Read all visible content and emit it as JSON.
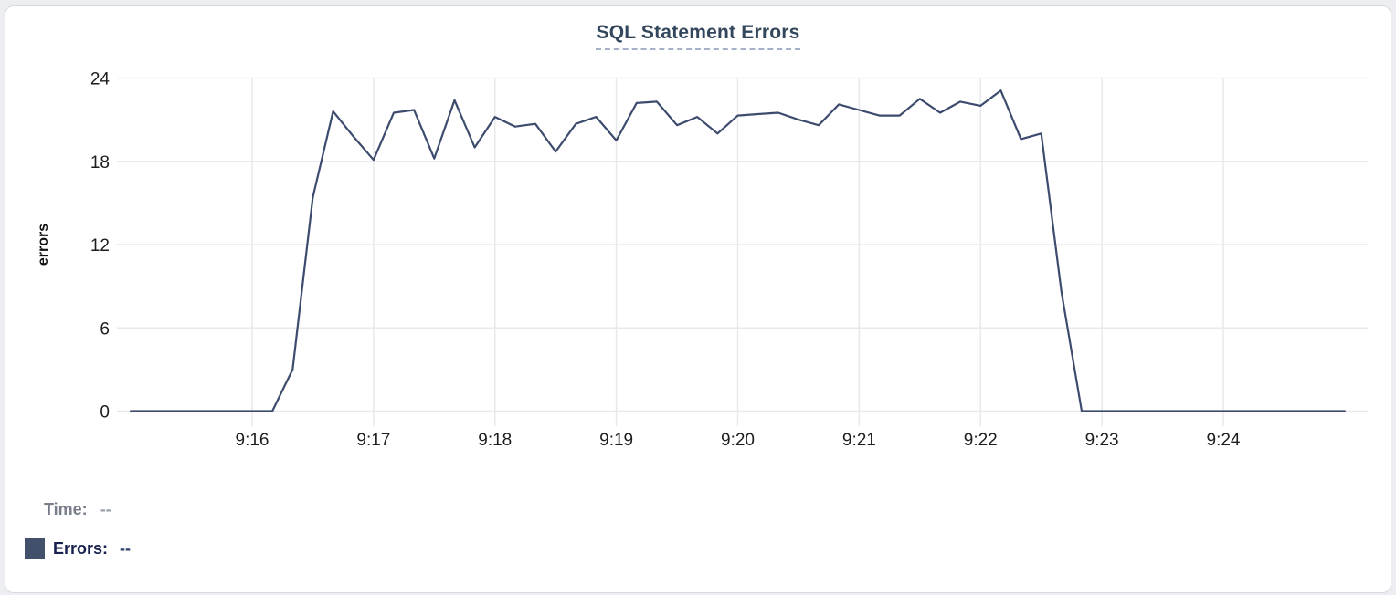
{
  "card": {
    "title": "SQL Statement Errors"
  },
  "footer": {
    "time_label": "Time:",
    "time_value": "--",
    "errors_label": "Errors:",
    "errors_value": "--"
  },
  "colors": {
    "line": "#3d4c6e",
    "legend_swatch": "#42506c",
    "title_text": "#33475c",
    "title_underline": "#a6b0c6",
    "grid": "#e8e9eb",
    "tick_text": "#1d1d1f",
    "axis_label_text": "#111111",
    "time_text": "#787e89",
    "errors_text": "#18214d",
    "card_border": "#d8dade",
    "page_bg": "#edeef2"
  },
  "chart_data": {
    "type": "line",
    "title": "SQL Statement Errors",
    "xlabel": "",
    "ylabel": "errors",
    "ylim": [
      0,
      24
    ],
    "yticks": [
      0,
      6,
      12,
      18,
      24
    ],
    "xticks": [
      "9:16",
      "9:17",
      "9:18",
      "9:19",
      "9:20",
      "9:21",
      "9:22",
      "9:23",
      "9:24"
    ],
    "x_range": [
      "9:15:00",
      "9:25:00"
    ],
    "point_interval_seconds": 10,
    "grid": true,
    "legend_position": "below-left",
    "series": [
      {
        "name": "Errors",
        "x": [
          "9:15:00",
          "9:15:10",
          "9:15:20",
          "9:15:30",
          "9:15:40",
          "9:15:50",
          "9:16:00",
          "9:16:10",
          "9:16:20",
          "9:16:30",
          "9:16:40",
          "9:16:50",
          "9:17:00",
          "9:17:10",
          "9:17:20",
          "9:17:30",
          "9:17:40",
          "9:17:50",
          "9:18:00",
          "9:18:10",
          "9:18:20",
          "9:18:30",
          "9:18:40",
          "9:18:50",
          "9:19:00",
          "9:19:10",
          "9:19:20",
          "9:19:30",
          "9:19:40",
          "9:19:50",
          "9:20:00",
          "9:20:10",
          "9:20:20",
          "9:20:30",
          "9:20:40",
          "9:20:50",
          "9:21:00",
          "9:21:10",
          "9:21:20",
          "9:21:30",
          "9:21:40",
          "9:21:50",
          "9:22:00",
          "9:22:10",
          "9:22:20",
          "9:22:30",
          "9:22:40",
          "9:22:50",
          "9:23:00",
          "9:23:10",
          "9:23:20",
          "9:23:30",
          "9:23:40",
          "9:23:50",
          "9:24:00",
          "9:24:10",
          "9:24:20",
          "9:24:30",
          "9:24:40",
          "9:24:50",
          "9:25:00"
        ],
        "values": [
          0,
          0,
          0,
          0,
          0,
          0,
          0,
          0,
          3,
          15.4,
          21.6,
          19.8,
          18.1,
          21.5,
          21.7,
          18.2,
          22.4,
          19,
          21.2,
          20.5,
          20.7,
          18.7,
          20.7,
          21.2,
          19.5,
          22.2,
          22.3,
          20.6,
          21.2,
          20,
          21.3,
          21.4,
          21.5,
          21,
          20.6,
          22.1,
          21.7,
          21.3,
          21.3,
          22.5,
          21.5,
          22.3,
          22,
          23.1,
          19.6,
          20,
          8.6,
          0,
          0,
          0,
          0,
          0,
          0,
          0,
          0,
          0,
          0,
          0,
          0,
          0,
          0
        ]
      }
    ]
  }
}
